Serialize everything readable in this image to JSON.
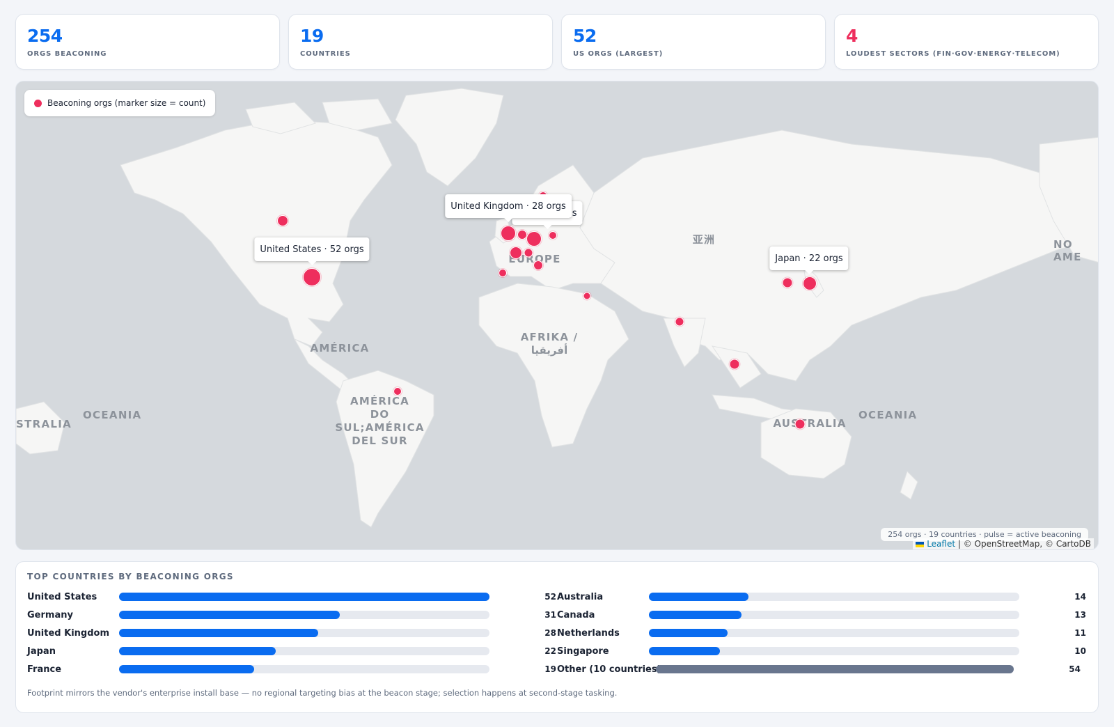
{
  "kpis": [
    {
      "value": "254",
      "label": "Orgs beaconing"
    },
    {
      "value": "19",
      "label": "Countries"
    },
    {
      "value": "52",
      "label": "US orgs (largest)"
    },
    {
      "value": "4",
      "label": "Loudest sectors (fin·gov·energy·telecom)"
    }
  ],
  "map": {
    "legend": "Beaconing orgs (marker size = count)",
    "labels": {
      "america": "AMÉRICA",
      "south_america": "AMÉRICA\nDO SUL;AMÉRICA\nDEL SUR",
      "africa": "AFRIKA /\nأفريقيا",
      "europe": "EUROPE",
      "asia": "亚洲",
      "australia": "AUSTRALIA",
      "oceania_west": "OCEANIA",
      "oceania_east": "OCEANIA",
      "australia_left": "STRALIA",
      "north_america_right": "NO\nAME"
    },
    "tooltips": {
      "us": "United States · 52 orgs",
      "uk": "United Kingdom · 28 orgs",
      "japan": "Japan · 22 orgs",
      "hidden_suffix": "gs"
    },
    "footer": "254 orgs · 19 countries · pulse = active beaconing",
    "attribution_link": "Leaflet",
    "attribution_rest": " | © OpenStreetMap, © CartoDB",
    "marker_color": "#ee2e5d"
  },
  "bars": {
    "title": "Top countries by beaconing orgs",
    "max": 52,
    "left": [
      {
        "name": "United States",
        "value": 52
      },
      {
        "name": "Germany",
        "value": 31
      },
      {
        "name": "United Kingdom",
        "value": 28
      },
      {
        "name": "Japan",
        "value": 22
      },
      {
        "name": "France",
        "value": 19
      }
    ],
    "right": [
      {
        "name": "Australia",
        "value": 14
      },
      {
        "name": "Canada",
        "value": 13
      },
      {
        "name": "Netherlands",
        "value": 11
      },
      {
        "name": "Singapore",
        "value": 10
      },
      {
        "name": "Other (10 countries)",
        "value": 54
      }
    ],
    "footnote": "Footprint mirrors the vendor's enterprise install base — no regional targeting bias at the beacon stage; selection happens at second-stage tasking."
  },
  "colors": {
    "accent": "#0a6cf0",
    "alert": "#ee2e5d",
    "other_bar": "#69768e"
  }
}
